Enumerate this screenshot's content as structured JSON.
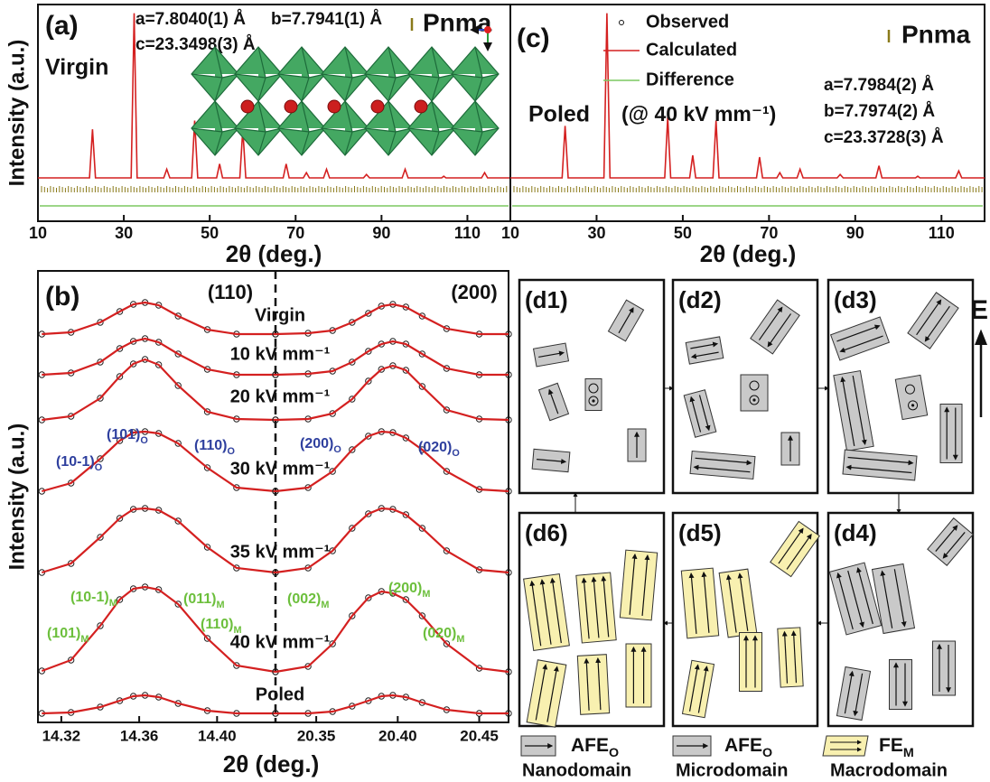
{
  "chart_data": [
    {
      "type": "line",
      "label": "(a)",
      "title": "Virgin",
      "ylabel": "Intensity (a.u.)",
      "xlabel": "2θ (deg.)",
      "xlim": [
        10,
        120
      ],
      "xticks": [
        10,
        30,
        50,
        70,
        90,
        110
      ],
      "ylim": [
        -0.2,
        1.05
      ],
      "annotations": [
        {
          "text": "a=7.8040(1) Å",
          "color": "#111111"
        },
        {
          "text": "b=7.7941(1) Å",
          "color": "#111111"
        },
        {
          "text": "c=23.3498(3) Å",
          "color": "#e0202a"
        }
      ],
      "legend": [
        {
          "name": "Pnma",
          "color": "#8a7a1a"
        }
      ],
      "x": [
        10,
        22,
        22.7,
        23.4,
        31.7,
        32.4,
        33.1,
        39.3,
        40,
        40.7,
        45.8,
        46.5,
        47.2,
        51.6,
        52.3,
        53,
        57,
        57.7,
        58.4,
        67.1,
        67.8,
        68.5,
        71.8,
        72.5,
        73.2,
        76.5,
        77.2,
        77.9,
        85.8,
        86.5,
        87.2,
        94.8,
        95.5,
        96.2,
        104,
        104.5,
        105,
        113.3,
        114,
        114.7,
        120
      ],
      "series": [
        {
          "color": "#d42020",
          "values": [
            0.05,
            0.05,
            0.33,
            0.05,
            0.05,
            1.0,
            0.05,
            0.05,
            0.1,
            0.05,
            0.05,
            0.38,
            0.05,
            0.05,
            0.13,
            0.05,
            0.05,
            0.33,
            0.05,
            0.05,
            0.13,
            0.05,
            0.05,
            0.08,
            0.05,
            0.05,
            0.1,
            0.05,
            0.05,
            0.07,
            0.05,
            0.05,
            0.1,
            0.05,
            0.05,
            0.06,
            0.05,
            0.05,
            0.08,
            0.05,
            0.05
          ]
        }
      ]
    },
    {
      "type": "offset-line",
      "label": "(b)",
      "ylabel": "Intensity (a.u.)",
      "xlabel": "2θ (deg.)",
      "row_color": "#b23ca8",
      "rows": [
        "Virgin",
        "10 kV mm⁻¹",
        "20 kV mm⁻¹",
        "30 kV mm⁻¹",
        "35 kV mm⁻¹",
        "40 kV mm⁻¹",
        "Poled"
      ],
      "panels": [
        {
          "title": "(110)",
          "xlim": [
            14.308,
            14.43
          ],
          "xticks": [
            14.32,
            14.36,
            {
              "value": 14.4,
              "label": "14.40"
            }
          ],
          "x": [
            14.31,
            14.325,
            14.34,
            14.35,
            14.357,
            14.363,
            14.37,
            14.38,
            14.395,
            14.41,
            14.43
          ],
          "series": [
            {
              "values": [
                0,
                0.02,
                0.13,
                0.25,
                0.33,
                0.35,
                0.32,
                0.2,
                0.05,
                0,
                0
              ]
            },
            {
              "values": [
                0,
                0.02,
                0.14,
                0.29,
                0.37,
                0.4,
                0.36,
                0.23,
                0.06,
                0,
                0
              ]
            },
            {
              "values": [
                0,
                0.04,
                0.24,
                0.48,
                0.62,
                0.67,
                0.61,
                0.38,
                0.09,
                0.01,
                0
              ]
            },
            {
              "values": [
                0.01,
                0.1,
                0.37,
                0.57,
                0.66,
                0.67,
                0.65,
                0.54,
                0.27,
                0.05,
                0.01
              ]
            },
            {
              "values": [
                0.01,
                0.11,
                0.4,
                0.61,
                0.71,
                0.72,
                0.7,
                0.58,
                0.29,
                0.06,
                0.01
              ]
            },
            {
              "values": [
                0.02,
                0.14,
                0.52,
                0.81,
                0.93,
                0.95,
                0.92,
                0.76,
                0.38,
                0.08,
                0.01
              ]
            },
            {
              "values": [
                0,
                0.01,
                0.07,
                0.14,
                0.19,
                0.2,
                0.18,
                0.11,
                0.03,
                0,
                0
              ]
            }
          ]
        },
        {
          "title": "(200)",
          "xlim": [
            20.325,
            20.468
          ],
          "xticks": [
            20.35,
            {
              "value": 20.4,
              "label": "20.40"
            },
            20.45
          ],
          "x": [
            20.325,
            20.345,
            20.36,
            20.372,
            20.382,
            20.39,
            20.397,
            20.405,
            20.415,
            20.43,
            20.45,
            20.468
          ],
          "series": [
            {
              "values": [
                0,
                0.01,
                0.04,
                0.13,
                0.23,
                0.31,
                0.33,
                0.3,
                0.2,
                0.06,
                0,
                0
              ]
            },
            {
              "values": [
                0,
                0.01,
                0.04,
                0.14,
                0.26,
                0.34,
                0.37,
                0.34,
                0.23,
                0.07,
                0,
                0
              ]
            },
            {
              "values": [
                0,
                0.01,
                0.07,
                0.23,
                0.43,
                0.56,
                0.6,
                0.55,
                0.37,
                0.11,
                0.01,
                0
              ]
            },
            {
              "values": [
                0.01,
                0.05,
                0.23,
                0.47,
                0.62,
                0.67,
                0.66,
                0.6,
                0.47,
                0.23,
                0.03,
                0.01
              ]
            },
            {
              "values": [
                0.01,
                0.06,
                0.25,
                0.5,
                0.66,
                0.72,
                0.71,
                0.65,
                0.5,
                0.25,
                0.04,
                0.01
              ]
            },
            {
              "values": [
                0.01,
                0.07,
                0.32,
                0.63,
                0.83,
                0.9,
                0.88,
                0.81,
                0.63,
                0.32,
                0.05,
                0.01
              ]
            },
            {
              "values": [
                0,
                0,
                0.02,
                0.08,
                0.14,
                0.19,
                0.2,
                0.18,
                0.12,
                0.04,
                0,
                0
              ]
            }
          ]
        }
      ],
      "peak_labels": [
        {
          "color": "#2e3f9e",
          "items": [
            {
              "text": "(10-1)",
              "sub": "O"
            },
            {
              "text": "(101)",
              "sub": "O"
            },
            {
              "text": "(110)",
              "sub": "O"
            },
            {
              "text": "(200)",
              "sub": "O"
            },
            {
              "text": "(020)",
              "sub": "O"
            }
          ]
        },
        {
          "color": "#6cbf3c",
          "items": [
            {
              "text": "(10-1)",
              "sub": "M"
            },
            {
              "text": "(011)",
              "sub": "M"
            },
            {
              "text": "(101)",
              "sub": "M"
            },
            {
              "text": "(110)",
              "sub": "M"
            },
            {
              "text": "(002)",
              "sub": "M"
            },
            {
              "text": "(200)",
              "sub": "M"
            },
            {
              "text": "(020)",
              "sub": "M"
            }
          ]
        }
      ]
    },
    {
      "type": "line",
      "label": "(c)",
      "title": "Poled",
      "subtitle": "(@ 40 kV mm⁻¹)",
      "xlabel": "2θ (deg.)",
      "xlim": [
        10,
        120
      ],
      "xticks": [
        10,
        30,
        50,
        70,
        90,
        110
      ],
      "ylim": [
        -0.2,
        1.05
      ],
      "annotations": [
        {
          "text": "a=7.7984(2) Å",
          "color": "#111111"
        },
        {
          "text": "b=7.7974(2) Å",
          "color": "#111111"
        },
        {
          "text": "c=23.3728(3) Å",
          "color": "#e0202a"
        }
      ],
      "legend": [
        {
          "name": "Observed",
          "color": "#111111"
        },
        {
          "name": "Calculated",
          "color": "#d42020"
        },
        {
          "name": "Difference",
          "color": "#7cc860"
        },
        {
          "name": "Pnma",
          "color": "#8a7a1a"
        }
      ],
      "x": [
        10,
        22,
        22.7,
        23.4,
        31.7,
        32.4,
        33.1,
        45.8,
        46.5,
        47.2,
        51.6,
        52.3,
        53,
        57,
        57.7,
        58.4,
        67.1,
        67.8,
        68.5,
        71.8,
        72.5,
        73.2,
        76.5,
        77.2,
        77.9,
        85.8,
        86.5,
        87.2,
        94.8,
        95.5,
        96.2,
        104,
        104.5,
        105,
        113.3,
        114,
        114.7,
        120
      ],
      "series": [
        {
          "color": "#d42020",
          "values": [
            0.05,
            0.05,
            0.35,
            0.05,
            0.05,
            1.0,
            0.05,
            0.05,
            0.4,
            0.05,
            0.05,
            0.18,
            0.05,
            0.05,
            0.38,
            0.05,
            0.05,
            0.17,
            0.05,
            0.05,
            0.08,
            0.05,
            0.05,
            0.1,
            0.05,
            0.05,
            0.07,
            0.05,
            0.05,
            0.12,
            0.05,
            0.05,
            0.06,
            0.05,
            0.05,
            0.09,
            0.05,
            0.05
          ]
        }
      ]
    }
  ],
  "diagram": {
    "panels": [
      "(d1)",
      "(d2)",
      "(d3)",
      "(d4)",
      "(d5)",
      "(d6)"
    ],
    "field": "E",
    "legend": [
      {
        "name": "AFE",
        "sub": "O",
        "caption": "Nanodomain"
      },
      {
        "name": "AFE",
        "sub": "O",
        "caption": "Microdomain"
      },
      {
        "name": "FE",
        "sub": "M",
        "caption": "Macrodomain"
      }
    ]
  }
}
